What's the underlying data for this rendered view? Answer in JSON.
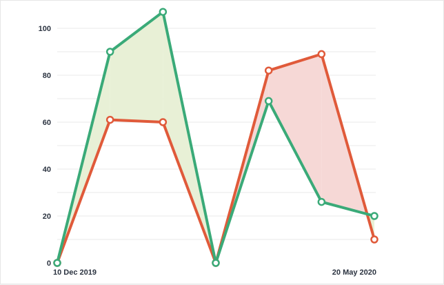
{
  "chart_data": {
    "type": "line",
    "title": "",
    "xlabel": "",
    "ylabel": "",
    "x_start_label": "10 Dec 2019",
    "x_end_label": "20 May 2020",
    "ylim": [
      0,
      110
    ],
    "yticks": [
      0,
      20,
      40,
      60,
      80,
      100
    ],
    "y_tick_labels": [
      "0",
      "20",
      "40",
      "60",
      "80",
      "100"
    ],
    "grid": true,
    "legend": "none",
    "series": [
      {
        "color": "#e05a3a",
        "values": [
          0,
          61,
          60,
          0,
          82,
          89,
          10
        ]
      },
      {
        "color": "#3aaa78",
        "values": [
          0,
          90,
          107,
          0,
          69,
          26,
          20
        ]
      }
    ],
    "fill_colors": {
      "green_above": "#e8f0d6",
      "red_above": "#f6d8d6"
    }
  }
}
